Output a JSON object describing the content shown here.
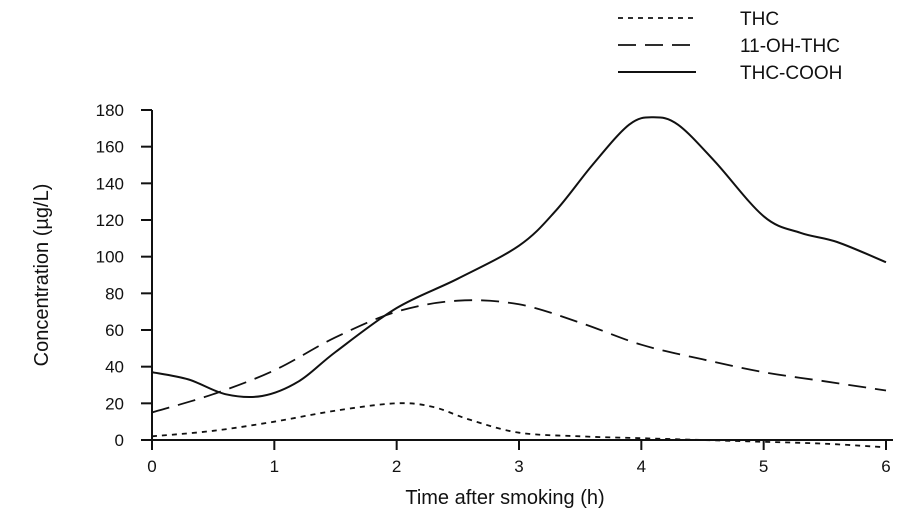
{
  "chart_data": {
    "type": "line",
    "title": "",
    "xlabel": "Time after smoking (h)",
    "ylabel": "Concentration (µg/L)",
    "xlim": [
      0,
      6
    ],
    "ylim": [
      0,
      180
    ],
    "xticks": [
      0,
      1,
      2,
      3,
      4,
      5,
      6
    ],
    "yticks": [
      0,
      20,
      40,
      60,
      80,
      100,
      120,
      140,
      160,
      180
    ],
    "grid": false,
    "legend_position": "top-right",
    "series": [
      {
        "name": "THC",
        "dash": "dotted",
        "x": [
          0,
          0.5,
          1,
          1.5,
          2,
          2.3,
          2.6,
          3,
          3.5,
          4,
          4.5,
          5,
          5.5,
          6
        ],
        "y": [
          2,
          5,
          10,
          16,
          20,
          18,
          11,
          4,
          2,
          1,
          0,
          -1,
          -2,
          -4
        ]
      },
      {
        "name": "11-OH-THC",
        "dash": "dashed",
        "x": [
          0,
          0.5,
          1,
          1.5,
          2,
          2.5,
          3,
          3.5,
          4,
          4.5,
          5,
          5.5,
          6
        ],
        "y": [
          15,
          25,
          38,
          56,
          70,
          76,
          74,
          64,
          52,
          44,
          37,
          32,
          27
        ]
      },
      {
        "name": "THC-COOH",
        "dash": "solid",
        "x": [
          0,
          0.3,
          0.6,
          0.9,
          1.2,
          1.5,
          2,
          2.5,
          3,
          3.3,
          3.6,
          3.9,
          4.1,
          4.3,
          4.6,
          5,
          5.3,
          5.6,
          6
        ],
        "y": [
          37,
          33,
          25,
          24,
          32,
          48,
          72,
          88,
          106,
          125,
          150,
          172,
          176,
          172,
          152,
          122,
          113,
          108,
          97
        ]
      }
    ]
  }
}
